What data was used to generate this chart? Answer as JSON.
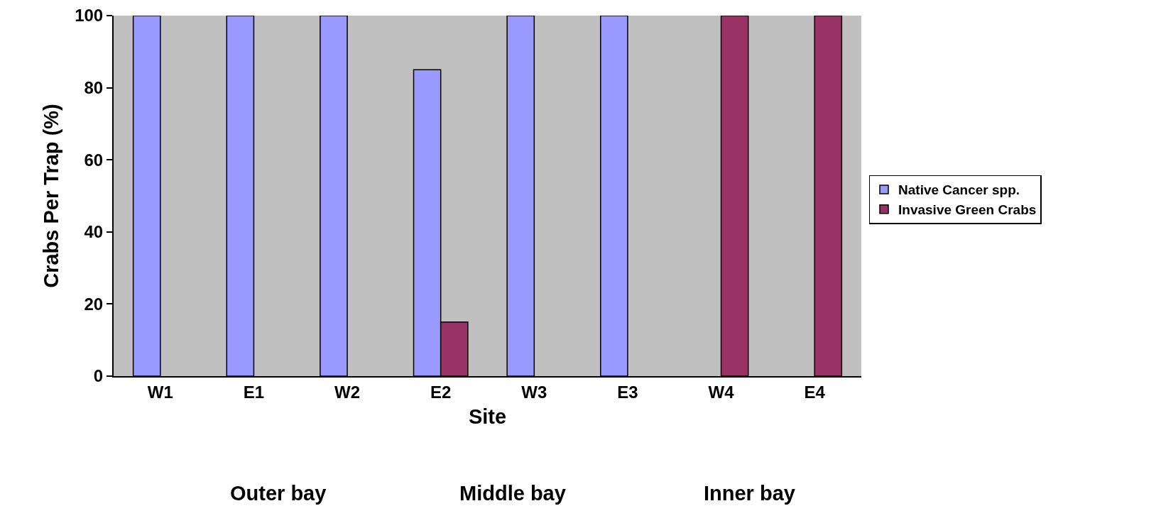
{
  "chart_data": {
    "type": "bar",
    "xlabel": "Site",
    "ylabel": "Crabs Per Trap (%)",
    "categories": [
      "W1",
      "E1",
      "W2",
      "E2",
      "W3",
      "E3",
      "W4",
      "E4"
    ],
    "series": [
      {
        "name": "Native Cancer spp.",
        "color": "#9999ff",
        "values": [
          100,
          100,
          100,
          85,
          100,
          100,
          null,
          null
        ]
      },
      {
        "name": "Invasive Green Crabs",
        "color": "#993366",
        "values": [
          null,
          null,
          null,
          15,
          null,
          null,
          100,
          100
        ]
      }
    ],
    "ylim": [
      0,
      100
    ],
    "yticks": [
      0,
      20,
      40,
      60,
      80,
      100
    ],
    "grid": false,
    "legend": "right",
    "annotations": [
      "Outer bay",
      "Middle bay",
      "Inner bay"
    ]
  }
}
